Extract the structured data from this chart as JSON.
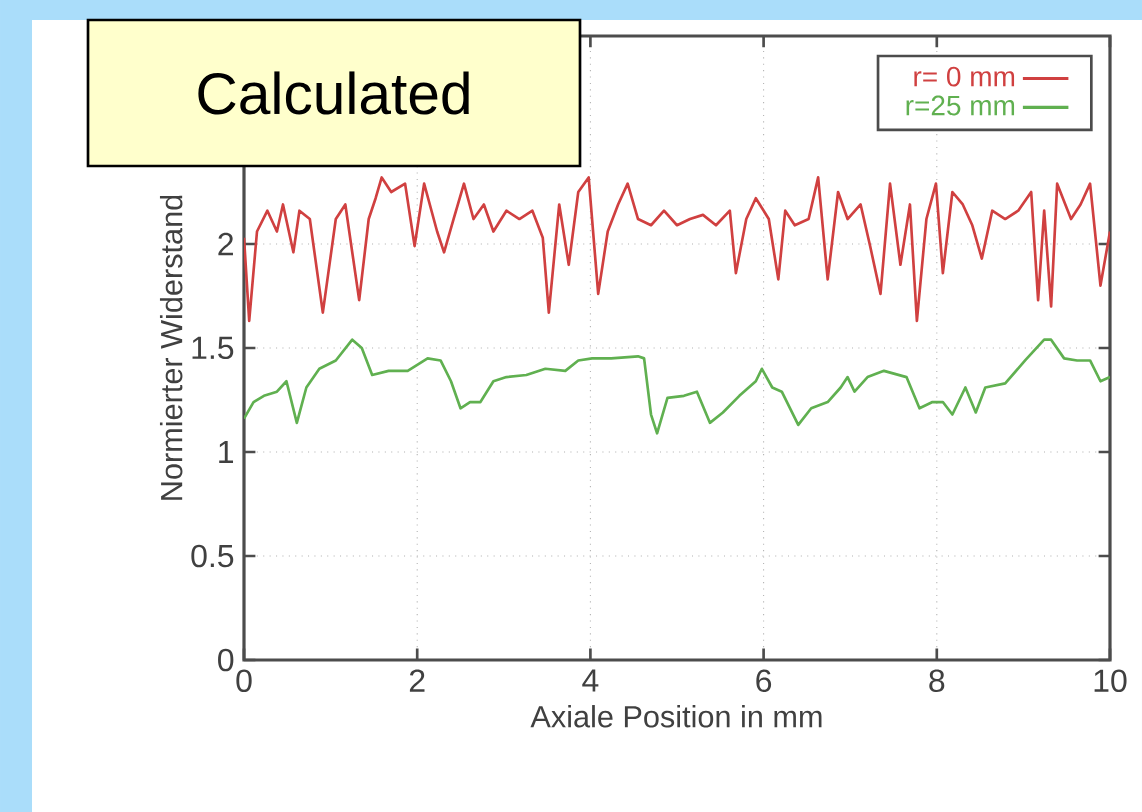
{
  "chart_data": {
    "type": "line",
    "xlabel": "Axiale Position in mm",
    "ylabel": "Normierter Widerstand",
    "annotations": [
      "Calculated"
    ],
    "xlim": [
      0,
      10
    ],
    "ylim": [
      0,
      3
    ],
    "xticks": [
      0,
      2,
      4,
      6,
      8,
      10
    ],
    "yticks": [
      0,
      0.5,
      1,
      1.5,
      2
    ],
    "grid": true,
    "legend": "top right",
    "series": [
      {
        "name": "r= 0 mm",
        "color": "#d04040",
        "x": [
          0,
          0.06,
          0.15,
          0.27,
          0.38,
          0.45,
          0.57,
          0.64,
          0.76,
          0.91,
          1.06,
          1.17,
          1.33,
          1.44,
          1.52,
          1.59,
          1.7,
          1.86,
          1.97,
          2.08,
          2.23,
          2.31,
          2.42,
          2.54,
          2.65,
          2.77,
          2.88,
          3.03,
          3.18,
          3.33,
          3.45,
          3.52,
          3.64,
          3.75,
          3.86,
          3.98,
          4.09,
          4.2,
          4.32,
          4.43,
          4.55,
          4.7,
          4.85,
          5.0,
          5.15,
          5.3,
          5.45,
          5.61,
          5.68,
          5.8,
          5.91,
          6.06,
          6.17,
          6.25,
          6.36,
          6.52,
          6.63,
          6.74,
          6.86,
          6.97,
          7.12,
          7.23,
          7.35,
          7.46,
          7.58,
          7.69,
          7.77,
          7.88,
          7.99,
          8.07,
          8.18,
          8.3,
          8.41,
          8.52,
          8.64,
          8.79,
          8.94,
          9.09,
          9.17,
          9.24,
          9.32,
          9.39,
          9.55,
          9.66,
          9.77,
          9.89,
          10.0
        ],
        "values": [
          2.03,
          1.63,
          2.06,
          2.16,
          2.06,
          2.19,
          1.96,
          2.16,
          2.12,
          1.67,
          2.12,
          2.19,
          1.73,
          2.12,
          2.22,
          2.32,
          2.25,
          2.29,
          1.99,
          2.29,
          2.06,
          1.96,
          2.12,
          2.29,
          2.12,
          2.19,
          2.06,
          2.16,
          2.12,
          2.16,
          2.03,
          1.67,
          2.19,
          1.9,
          2.25,
          2.32,
          1.76,
          2.06,
          2.19,
          2.29,
          2.12,
          2.09,
          2.16,
          2.09,
          2.12,
          2.14,
          2.09,
          2.16,
          1.86,
          2.12,
          2.22,
          2.12,
          1.83,
          2.16,
          2.09,
          2.12,
          2.32,
          1.83,
          2.25,
          2.12,
          2.19,
          1.99,
          1.76,
          2.29,
          1.9,
          2.19,
          1.63,
          2.12,
          2.29,
          1.86,
          2.25,
          2.19,
          2.09,
          1.93,
          2.16,
          2.12,
          2.16,
          2.25,
          1.73,
          2.16,
          1.7,
          2.29,
          2.12,
          2.19,
          2.29,
          1.8,
          2.06
        ]
      },
      {
        "name": "r=25 mm",
        "color": "#60b050",
        "x": [
          0,
          0.11,
          0.23,
          0.38,
          0.49,
          0.61,
          0.72,
          0.87,
          1.06,
          1.25,
          1.36,
          1.48,
          1.67,
          1.89,
          2.12,
          2.27,
          2.39,
          2.5,
          2.61,
          2.73,
          2.88,
          3.03,
          3.26,
          3.48,
          3.71,
          3.86,
          4.02,
          4.24,
          4.55,
          4.62,
          4.7,
          4.77,
          4.89,
          5.08,
          5.23,
          5.38,
          5.53,
          5.72,
          5.91,
          5.98,
          6.1,
          6.21,
          6.4,
          6.55,
          6.74,
          6.89,
          6.97,
          7.05,
          7.2,
          7.39,
          7.65,
          7.8,
          7.95,
          8.07,
          8.18,
          8.33,
          8.45,
          8.56,
          8.79,
          9.02,
          9.24,
          9.32,
          9.47,
          9.62,
          9.77,
          9.89,
          10.0
        ],
        "values": [
          1.16,
          1.24,
          1.27,
          1.29,
          1.34,
          1.14,
          1.31,
          1.4,
          1.44,
          1.54,
          1.5,
          1.37,
          1.39,
          1.39,
          1.45,
          1.44,
          1.34,
          1.21,
          1.24,
          1.24,
          1.34,
          1.36,
          1.37,
          1.4,
          1.39,
          1.44,
          1.45,
          1.45,
          1.46,
          1.45,
          1.18,
          1.09,
          1.26,
          1.27,
          1.29,
          1.14,
          1.19,
          1.27,
          1.34,
          1.4,
          1.31,
          1.29,
          1.13,
          1.21,
          1.24,
          1.31,
          1.36,
          1.29,
          1.36,
          1.39,
          1.36,
          1.21,
          1.24,
          1.24,
          1.18,
          1.31,
          1.19,
          1.31,
          1.33,
          1.44,
          1.54,
          1.54,
          1.45,
          1.44,
          1.44,
          1.34,
          1.36
        ]
      }
    ]
  }
}
